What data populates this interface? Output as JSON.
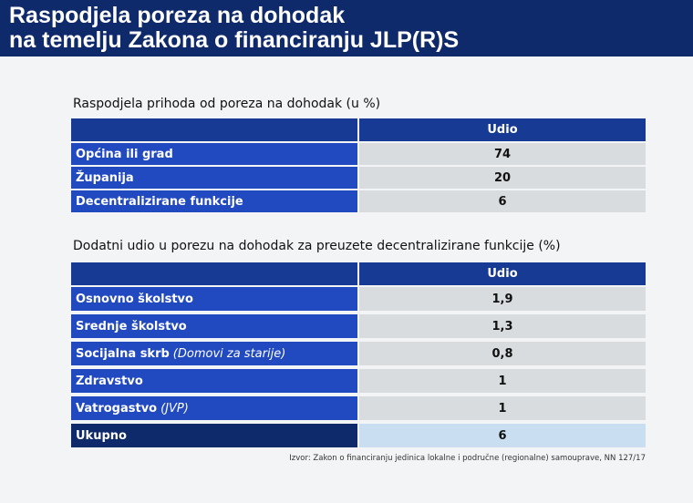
{
  "header": {
    "title_line1": "Raspodjela poreza na dohodak",
    "title_line2": "na temelju Zakona o financiranju JLP(R)S"
  },
  "tables": [
    {
      "caption": "Raspodjela prihoda od poreza na dohodak (u %)",
      "column_header": "Udio",
      "rows": [
        {
          "label": "Općina ili grad",
          "value": "74"
        },
        {
          "label": "Županija",
          "value": "20"
        },
        {
          "label": "Decentralizirane funkcije",
          "value": "6"
        }
      ]
    },
    {
      "caption": "Dodatni udio u porezu na dohodak za preuzete decentralizirane funkcije (%)",
      "column_header": "Udio",
      "rows": [
        {
          "label": "Osnovno školstvo",
          "value": "1,9"
        },
        {
          "label": "Srednje školstvo",
          "value": "1,3"
        },
        {
          "label": "Socijalna skrb",
          "note": "(Domovi za starije)",
          "value": "0,8"
        },
        {
          "label": "Zdravstvo",
          "value": "1"
        },
        {
          "label": "Vatrogastvo",
          "note": "(JVP)",
          "value": "1"
        },
        {
          "label": "Ukupno",
          "value": "6",
          "total": true
        }
      ]
    }
  ],
  "source": "Izvor: Zakon o financiranju jedinica lokalne i područne (regionalne) samouprave, NN 127/17"
}
